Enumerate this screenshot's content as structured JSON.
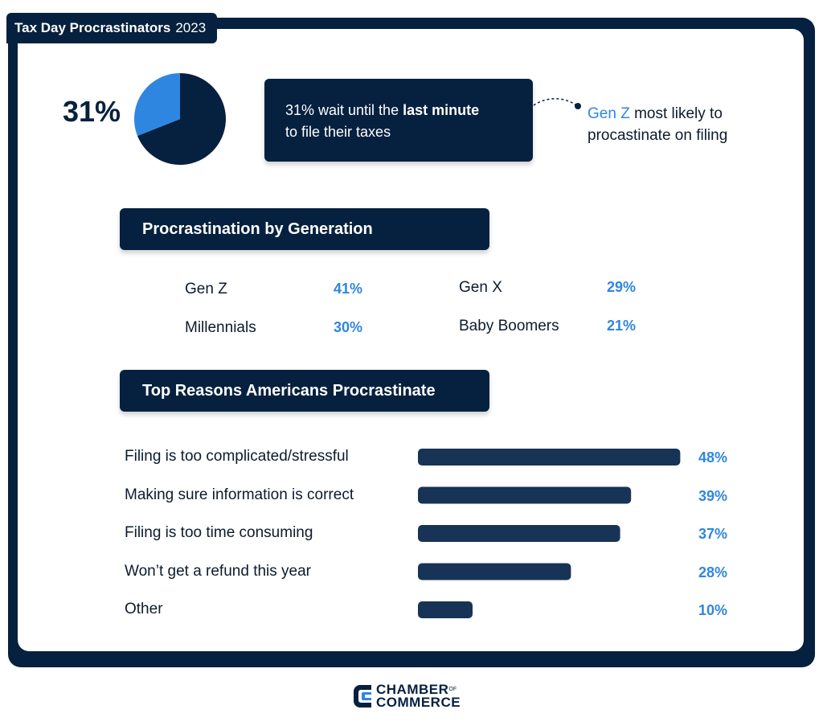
{
  "header": {
    "title_bold": "Tax Day Procrastinators",
    "title_year": "2023"
  },
  "headline": {
    "percent": "31%",
    "callout_pre": "31% wait until the ",
    "callout_bold": "last minute",
    "callout_post": "to file their taxes",
    "note_highlight": "Gen Z",
    "note_rest_1": " most likely to",
    "note_rest_2": "procastinate on filing"
  },
  "generation": {
    "heading": "Procrastination by Generation",
    "items": [
      {
        "label": "Gen Z",
        "value": "41%"
      },
      {
        "label": "Millennials",
        "value": "30%"
      },
      {
        "label": "Gen X",
        "value": "29%"
      },
      {
        "label": "Baby Boomers",
        "value": "21%"
      }
    ]
  },
  "reasons": {
    "heading": "Top Reasons Americans Procrastinate"
  },
  "footer": {
    "logo_line1": "CHAMBER",
    "logo_of": "OF",
    "logo_line2": "COMMERCE"
  },
  "colors": {
    "navy": "#06213f",
    "bar": "#173457",
    "accent": "#2f86e0"
  },
  "chart_data": [
    {
      "type": "pie",
      "labels": [
        "wait until the last minute",
        "others"
      ],
      "values": [
        31,
        69
      ],
      "colors": [
        "#2f86e0",
        "#06213f"
      ]
    },
    {
      "type": "bar",
      "orientation": "horizontal",
      "title": "Top Reasons Americans Procrastinate",
      "categories": [
        "Filing is too complicated/stressful",
        "Making sure information is correct",
        "Filing is too time consuming",
        "Won’t get a refund this year",
        "Other"
      ],
      "values": [
        48,
        39,
        37,
        28,
        10
      ],
      "value_labels": [
        "48%",
        "39%",
        "37%",
        "28%",
        "10%"
      ],
      "unit": "%"
    }
  ]
}
